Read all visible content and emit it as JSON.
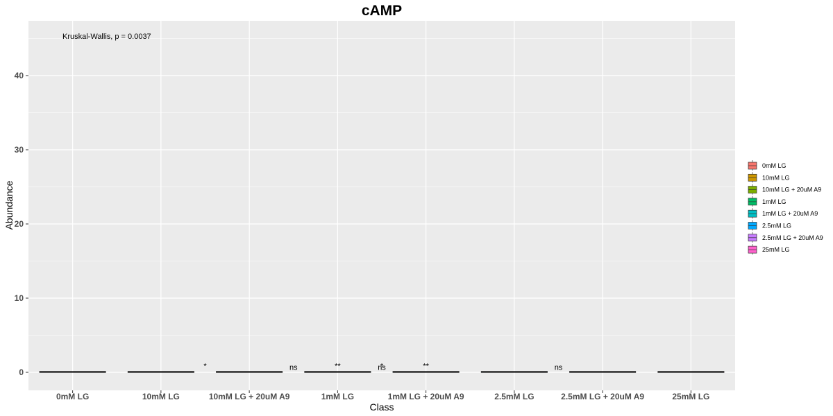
{
  "chart_data": {
    "type": "box",
    "title": "cAMP",
    "xlabel": "Class",
    "ylabel": "Abundance",
    "ylim": [
      -2.5,
      47.5
    ],
    "yticks": [
      0,
      10,
      20,
      30,
      40
    ],
    "categories": [
      "0mM LG",
      "10mM LG",
      "10mM LG + 20uM A9",
      "1mM LG",
      "1mM LG + 20uM A9",
      "2.5mM LG",
      "2.5mM LG + 20uM A9",
      "25mM LG"
    ],
    "series": [
      {
        "name": "0mM LG",
        "color": "#F8766D",
        "values": [
          0.05
        ]
      },
      {
        "name": "10mM LG",
        "color": "#CD9600",
        "values": [
          0.05
        ]
      },
      {
        "name": "10mM LG + 20uM A9",
        "color": "#7CAE00",
        "values": [
          0.05
        ]
      },
      {
        "name": "1mM LG",
        "color": "#00BE67",
        "values": [
          0.05
        ]
      },
      {
        "name": "1mM LG + 20uM A9",
        "color": "#00BFC4",
        "values": [
          0.05
        ]
      },
      {
        "name": "2.5mM LG",
        "color": "#00A9FF",
        "values": [
          0.05
        ]
      },
      {
        "name": "2.5mM LG + 20uM A9",
        "color": "#C77CFF",
        "values": [
          0.05
        ]
      },
      {
        "name": "25mM LG",
        "color": "#FF61CC",
        "values": [
          0.05
        ]
      }
    ],
    "grid": true,
    "legend_position": "right",
    "annotations": [
      {
        "text": "Kruskal-Wallis, p = 0.0037",
        "x": 0.2,
        "y": 45.3
      },
      {
        "text": "*",
        "x": 2.5,
        "y": 0.9
      },
      {
        "text": "ns",
        "x": 3.5,
        "y": 0.7
      },
      {
        "text": "**",
        "x": 4.0,
        "y": 0.9
      },
      {
        "text": "ns",
        "x": 4.5,
        "y": 0.7
      },
      {
        "text": "*",
        "x": 4.5,
        "y": 0.9
      },
      {
        "text": "**",
        "x": 5.0,
        "y": 0.9
      },
      {
        "text": "ns",
        "x": 6.5,
        "y": 0.7
      }
    ]
  }
}
